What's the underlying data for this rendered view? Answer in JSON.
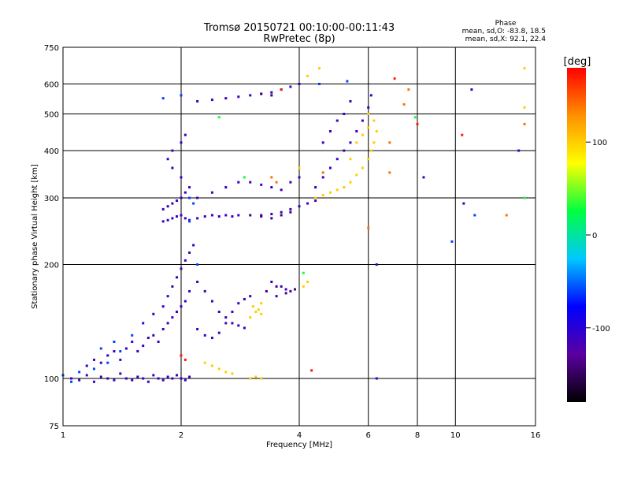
{
  "chart_data": {
    "type": "scatter",
    "title": "Tromsø 20150721 00:10:00-00:11:43",
    "subtitle": "RwPretec (8p)",
    "xlabel": "Frequency [MHz]",
    "ylabel": "Stationary phase Virtual Height [km]",
    "x_scale": "log",
    "y_scale": "log",
    "xlim": [
      1,
      16
    ],
    "ylim": [
      75,
      750
    ],
    "x_ticks": [
      1,
      2,
      4,
      6,
      8,
      10,
      16
    ],
    "y_ticks": [
      75,
      100,
      200,
      300,
      400,
      500,
      600,
      750
    ],
    "grid": true,
    "stats": {
      "heading": "Phase",
      "o_line": "mean, sd,O: -83.8, 18.5",
      "x_line": "mean, sd,X:  92.1, 22.4"
    },
    "colorbar": {
      "label": "[deg]",
      "range": [
        -180,
        180
      ],
      "ticks": [
        100,
        0,
        -100
      ],
      "colors": [
        "#000000",
        "#5a00a0",
        "#0000ff",
        "#00c8ff",
        "#00ff40",
        "#ffff00",
        "#ff9000",
        "#ff0000"
      ]
    },
    "series": [
      {
        "color_phase": -110,
        "points": [
          [
            1.05,
            100
          ],
          [
            1.1,
            99
          ],
          [
            1.15,
            102
          ],
          [
            1.2,
            98
          ],
          [
            1.25,
            101
          ],
          [
            1.3,
            100
          ],
          [
            1.35,
            99
          ],
          [
            1.4,
            103
          ],
          [
            1.45,
            100
          ],
          [
            1.5,
            99
          ],
          [
            1.55,
            101
          ],
          [
            1.6,
            100
          ],
          [
            1.65,
            98
          ],
          [
            1.7,
            102
          ],
          [
            1.75,
            100
          ],
          [
            1.8,
            99
          ],
          [
            1.85,
            101
          ],
          [
            1.9,
            100
          ],
          [
            1.95,
            102
          ],
          [
            2.0,
            100
          ],
          [
            2.05,
            99
          ],
          [
            2.1,
            101
          ],
          [
            1.15,
            108
          ],
          [
            1.2,
            112
          ],
          [
            1.25,
            110
          ],
          [
            1.3,
            115
          ],
          [
            1.35,
            118
          ],
          [
            1.4,
            112
          ],
          [
            1.45,
            120
          ],
          [
            1.5,
            125
          ],
          [
            1.55,
            118
          ],
          [
            1.6,
            122
          ],
          [
            1.65,
            128
          ],
          [
            1.7,
            130
          ],
          [
            1.75,
            125
          ],
          [
            1.8,
            135
          ],
          [
            1.85,
            140
          ],
          [
            1.9,
            145
          ],
          [
            1.95,
            150
          ],
          [
            2.0,
            155
          ],
          [
            2.05,
            160
          ],
          [
            2.1,
            170
          ],
          [
            1.6,
            140
          ],
          [
            1.7,
            148
          ],
          [
            1.8,
            155
          ],
          [
            1.85,
            165
          ],
          [
            1.9,
            175
          ],
          [
            1.95,
            185
          ],
          [
            2.0,
            195
          ],
          [
            2.05,
            205
          ],
          [
            2.1,
            215
          ],
          [
            2.15,
            225
          ],
          [
            2.2,
            180
          ],
          [
            2.3,
            170
          ],
          [
            2.4,
            160
          ],
          [
            2.5,
            150
          ],
          [
            2.6,
            145
          ],
          [
            2.7,
            140
          ],
          [
            2.8,
            138
          ],
          [
            2.9,
            136
          ],
          [
            2.2,
            135
          ],
          [
            2.3,
            130
          ],
          [
            2.4,
            128
          ],
          [
            2.5,
            132
          ],
          [
            2.6,
            140
          ],
          [
            2.7,
            150
          ],
          [
            2.8,
            158
          ],
          [
            2.9,
            162
          ],
          [
            3.0,
            165
          ],
          [
            1.8,
            260
          ],
          [
            1.85,
            262
          ],
          [
            1.9,
            265
          ],
          [
            1.95,
            268
          ],
          [
            2.0,
            270
          ],
          [
            2.05,
            265
          ],
          [
            2.1,
            262
          ],
          [
            2.2,
            265
          ],
          [
            2.3,
            268
          ],
          [
            2.4,
            270
          ],
          [
            2.5,
            268
          ],
          [
            2.6,
            270
          ],
          [
            2.7,
            268
          ],
          [
            2.8,
            270
          ],
          [
            1.8,
            280
          ],
          [
            1.85,
            285
          ],
          [
            1.9,
            290
          ],
          [
            1.95,
            295
          ],
          [
            2.0,
            300
          ],
          [
            2.05,
            310
          ],
          [
            2.1,
            320
          ],
          [
            2.0,
            340
          ],
          [
            1.9,
            360
          ],
          [
            1.85,
            380
          ],
          [
            1.9,
            400
          ],
          [
            2.0,
            420
          ],
          [
            2.05,
            440
          ],
          [
            2.2,
            300
          ],
          [
            2.4,
            310
          ],
          [
            2.6,
            320
          ],
          [
            2.8,
            330
          ],
          [
            3.0,
            330
          ],
          [
            3.2,
            325
          ],
          [
            3.4,
            320
          ],
          [
            3.6,
            315
          ],
          [
            3.8,
            330
          ],
          [
            4.0,
            340
          ],
          [
            3.2,
            270
          ],
          [
            3.4,
            272
          ],
          [
            3.6,
            275
          ],
          [
            3.8,
            280
          ],
          [
            4.0,
            285
          ],
          [
            4.2,
            290
          ],
          [
            4.4,
            295
          ],
          [
            4.4,
            320
          ],
          [
            4.6,
            340
          ],
          [
            4.8,
            360
          ],
          [
            5.0,
            380
          ],
          [
            5.2,
            400
          ],
          [
            5.4,
            420
          ],
          [
            5.6,
            450
          ],
          [
            5.8,
            480
          ],
          [
            6.0,
            520
          ],
          [
            6.1,
            560
          ],
          [
            4.6,
            420
          ],
          [
            4.8,
            450
          ],
          [
            5.0,
            480
          ],
          [
            5.2,
            500
          ],
          [
            5.4,
            540
          ],
          [
            2.2,
            540
          ],
          [
            2.4,
            545
          ],
          [
            2.6,
            550
          ],
          [
            2.8,
            555
          ],
          [
            3.0,
            560
          ],
          [
            3.2,
            565
          ],
          [
            3.4,
            570
          ],
          [
            3.6,
            580
          ],
          [
            3.8,
            590
          ],
          [
            4.0,
            600
          ],
          [
            3.4,
            180
          ],
          [
            3.6,
            175
          ],
          [
            3.8,
            170
          ],
          [
            3.5,
            165
          ],
          [
            3.7,
            172
          ],
          [
            8.3,
            340
          ],
          [
            10.5,
            290
          ],
          [
            11.0,
            580
          ],
          [
            14.5,
            400
          ],
          [
            6.3,
            100
          ],
          [
            6.3,
            200
          ]
        ]
      },
      {
        "color_phase": -140,
        "points": [
          [
            3.0,
            270
          ],
          [
            3.2,
            268
          ],
          [
            3.4,
            265
          ],
          [
            3.6,
            270
          ],
          [
            3.8,
            275
          ],
          [
            3.3,
            170
          ],
          [
            3.5,
            175
          ],
          [
            3.7,
            168
          ],
          [
            3.9,
            172
          ],
          [
            3.2,
            565
          ],
          [
            3.4,
            560
          ]
        ]
      },
      {
        "color_phase": -60,
        "points": [
          [
            1.0,
            102
          ],
          [
            1.05,
            98
          ],
          [
            1.1,
            104
          ],
          [
            1.2,
            106
          ],
          [
            1.3,
            110
          ],
          [
            1.4,
            118
          ],
          [
            1.5,
            130
          ],
          [
            1.25,
            120
          ],
          [
            1.35,
            125
          ],
          [
            1.8,
            550
          ],
          [
            2.0,
            560
          ],
          [
            2.1,
            300
          ],
          [
            2.15,
            290
          ],
          [
            2.1,
            260
          ],
          [
            2.2,
            200
          ],
          [
            4.5,
            600
          ],
          [
            5.3,
            610
          ],
          [
            9.8,
            230
          ],
          [
            11.2,
            270
          ]
        ]
      },
      {
        "color_phase": 100,
        "points": [
          [
            4.4,
            300
          ],
          [
            4.6,
            305
          ],
          [
            4.8,
            310
          ],
          [
            5.0,
            315
          ],
          [
            5.2,
            320
          ],
          [
            5.4,
            330
          ],
          [
            5.6,
            345
          ],
          [
            5.8,
            360
          ],
          [
            6.0,
            380
          ],
          [
            6.1,
            400
          ],
          [
            6.2,
            420
          ],
          [
            6.3,
            450
          ],
          [
            6.2,
            480
          ],
          [
            6.0,
            500
          ],
          [
            5.6,
            420
          ],
          [
            5.8,
            440
          ],
          [
            6.0,
            460
          ],
          [
            5.4,
            380
          ],
          [
            3.1,
            150
          ],
          [
            3.2,
            148
          ],
          [
            3.0,
            145
          ],
          [
            3.15,
            152
          ],
          [
            3.05,
            155
          ],
          [
            3.2,
            158
          ],
          [
            2.3,
            110
          ],
          [
            2.4,
            108
          ],
          [
            2.5,
            106
          ],
          [
            2.6,
            104
          ],
          [
            2.7,
            103
          ],
          [
            3.0,
            100
          ],
          [
            3.1,
            101
          ],
          [
            3.2,
            100
          ],
          [
            4.1,
            175
          ],
          [
            4.2,
            180
          ],
          [
            4.0,
            360
          ],
          [
            4.2,
            630
          ],
          [
            4.5,
            660
          ],
          [
            15.0,
            520
          ],
          [
            15.0,
            660
          ]
        ]
      },
      {
        "color_phase": 140,
        "points": [
          [
            3.4,
            340
          ],
          [
            3.5,
            330
          ],
          [
            4.6,
            350
          ],
          [
            6.8,
            350
          ],
          [
            6.8,
            420
          ],
          [
            6.0,
            250
          ],
          [
            7.4,
            530
          ],
          [
            7.6,
            580
          ],
          [
            13.5,
            270
          ],
          [
            15.0,
            470
          ]
        ]
      },
      {
        "color_phase": 170,
        "points": [
          [
            2.0,
            115
          ],
          [
            2.05,
            112
          ],
          [
            3.6,
            580
          ],
          [
            4.3,
            105
          ],
          [
            8.0,
            470
          ],
          [
            10.4,
            440
          ],
          [
            7.0,
            620
          ]
        ]
      },
      {
        "color_phase": 30,
        "points": [
          [
            2.5,
            490
          ],
          [
            7.9,
            490
          ],
          [
            15.0,
            300
          ],
          [
            2.9,
            340
          ],
          [
            4.1,
            190
          ]
        ]
      }
    ]
  }
}
